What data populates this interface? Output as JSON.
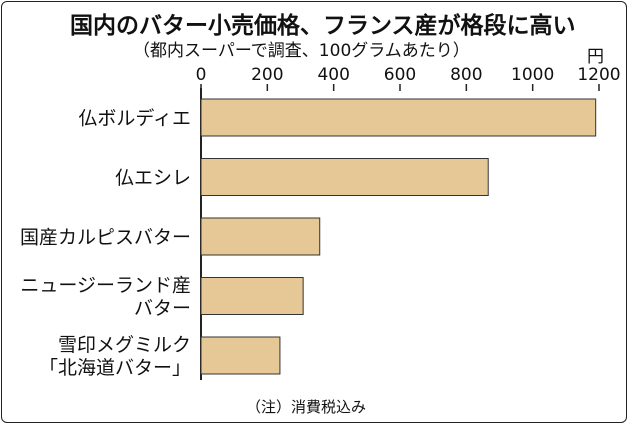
{
  "header": {
    "title": "国内のバター小売価格、フランス産が格段に高い",
    "subtitle": "（都内スーパーで調査、100グラムあたり）",
    "unit": "円"
  },
  "footer": {
    "note": "（注）消費税込み"
  },
  "colors": {
    "bar_fill": "#e6c896",
    "bar_stroke": "#333333",
    "axis": "#222222"
  },
  "chart_data": {
    "type": "bar",
    "orientation": "horizontal",
    "title": "国内のバター小売価格、フランス産が格段に高い",
    "subtitle": "（都内スーパーで調査、100グラムあたり）",
    "unit": "円",
    "xlim": [
      0,
      1200
    ],
    "xticks": [
      0,
      200,
      400,
      600,
      800,
      1000,
      1200
    ],
    "grid": false,
    "categories": [
      [
        "仏ボルディエ"
      ],
      [
        "仏エシレ"
      ],
      [
        "国産カルピスバター"
      ],
      [
        "ニュージーランド産",
        "バター"
      ],
      [
        "雪印メグミルク",
        "「北海道バター」"
      ]
    ],
    "values": [
      1190,
      866,
      358,
      308,
      238
    ]
  }
}
